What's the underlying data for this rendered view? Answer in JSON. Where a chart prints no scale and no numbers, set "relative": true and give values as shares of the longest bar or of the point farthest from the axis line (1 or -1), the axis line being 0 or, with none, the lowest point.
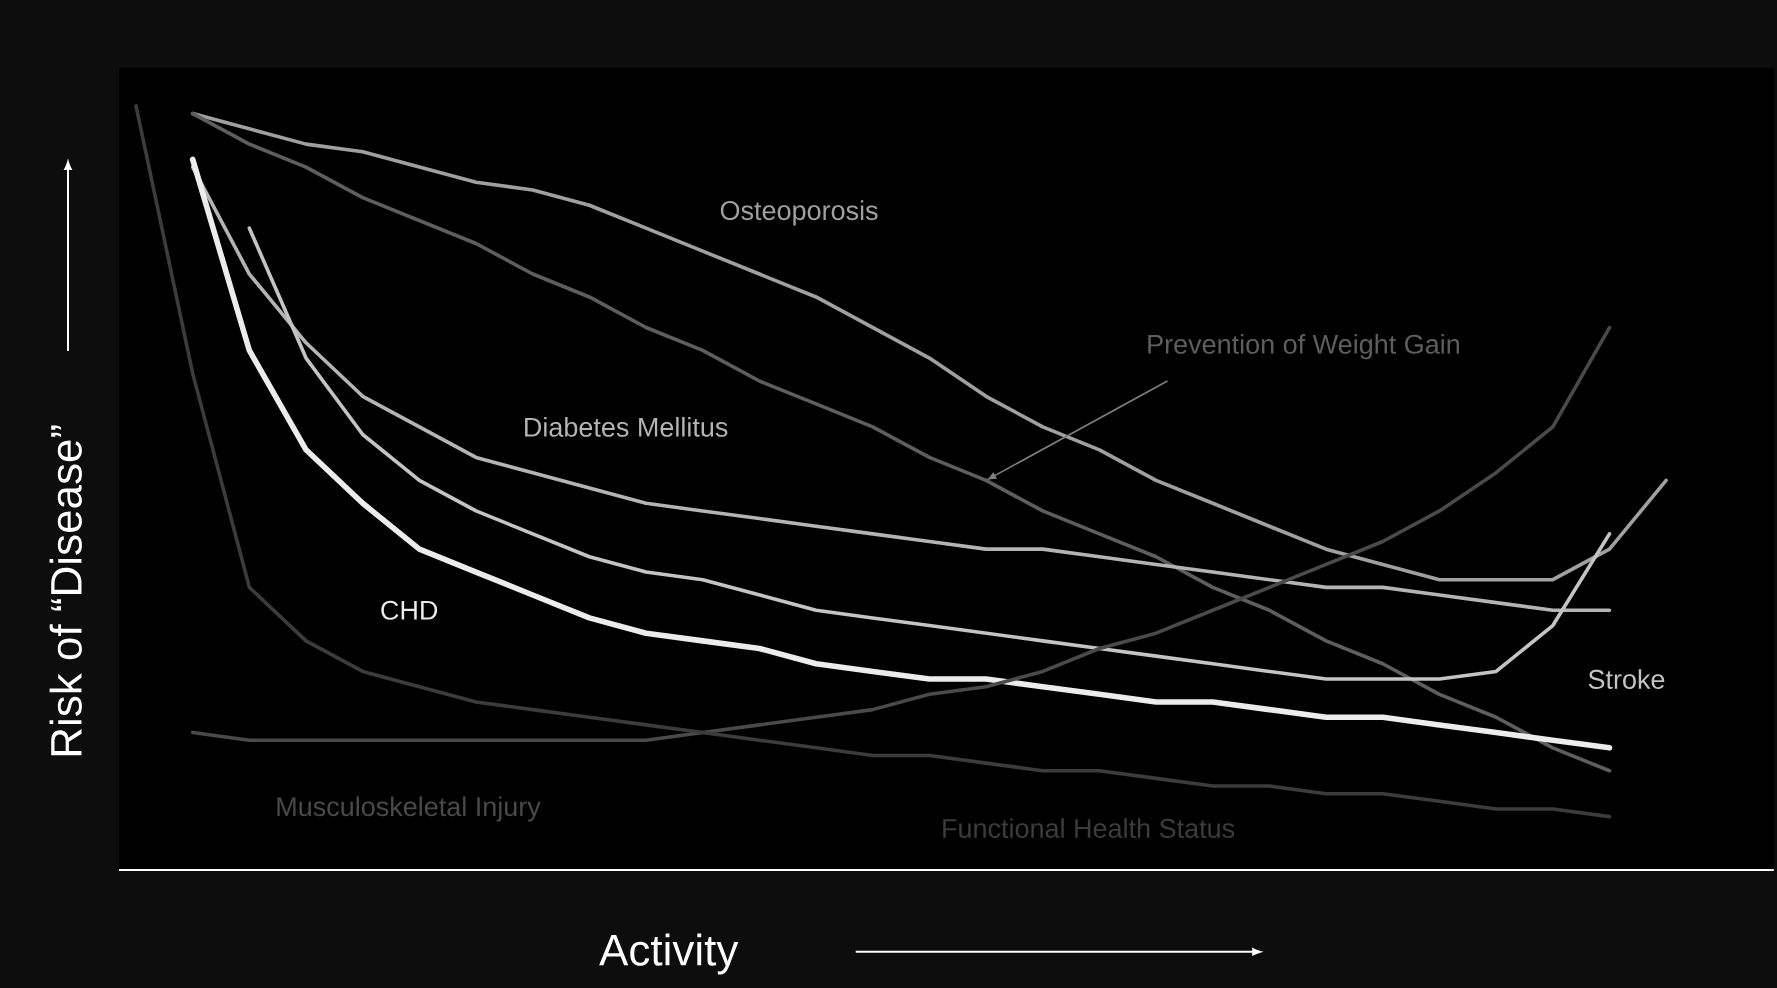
{
  "chart_data": {
    "type": "line",
    "relative": true,
    "xlabel": "Activity",
    "ylabel": "Risk of “Disease”",
    "categories": [
      null,
      null,
      null,
      null,
      null,
      null,
      null,
      null,
      null,
      null,
      null,
      null,
      null,
      null,
      null,
      null,
      null,
      null,
      null,
      null,
      null,
      null,
      null,
      null,
      null,
      null,
      null,
      null
    ],
    "series": [
      {
        "name": "Osteoporosis",
        "color": "#a0a0a0",
        "values": [
          null,
          0.99,
          0.97,
          0.95,
          0.94,
          0.92,
          0.9,
          0.89,
          0.87,
          0.84,
          0.81,
          0.78,
          0.75,
          0.71,
          0.67,
          0.62,
          0.58,
          0.55,
          0.51,
          0.48,
          0.45,
          0.42,
          0.4,
          0.38,
          0.38,
          0.38,
          0.42,
          0.51
        ]
      },
      {
        "name": "Prevention of Weight Gain",
        "color": "#5e5e5e",
        "values": [
          null,
          0.99,
          0.95,
          0.92,
          0.88,
          0.85,
          0.82,
          0.78,
          0.75,
          0.71,
          0.68,
          0.64,
          0.61,
          0.58,
          0.54,
          0.51,
          0.47,
          0.44,
          0.41,
          0.37,
          0.34,
          0.3,
          0.27,
          0.23,
          0.2,
          0.16,
          0.13,
          null
        ]
      },
      {
        "name": "Diabetes Mellitus",
        "color": "#b4b4b4",
        "values": [
          null,
          0.92,
          0.78,
          0.69,
          0.62,
          0.58,
          0.54,
          0.52,
          0.5,
          0.48,
          0.47,
          0.46,
          0.45,
          0.44,
          0.43,
          0.42,
          0.42,
          0.41,
          0.4,
          0.39,
          0.38,
          0.37,
          0.37,
          0.36,
          0.35,
          0.34,
          0.34,
          null
        ]
      },
      {
        "name": "CHD",
        "color": "#ececec",
        "values": [
          null,
          0.93,
          0.68,
          0.55,
          0.48,
          0.42,
          0.39,
          0.36,
          0.33,
          0.31,
          0.3,
          0.29,
          0.27,
          0.26,
          0.25,
          0.25,
          0.24,
          0.23,
          0.22,
          0.22,
          0.21,
          0.2,
          0.2,
          0.19,
          0.18,
          0.17,
          0.16,
          null
        ]
      },
      {
        "name": "Stroke",
        "color": "#c4c4c4",
        "values": [
          null,
          null,
          0.84,
          0.67,
          0.57,
          0.51,
          0.47,
          0.44,
          0.41,
          0.39,
          0.38,
          0.36,
          0.34,
          0.33,
          0.32,
          0.31,
          0.3,
          0.29,
          0.28,
          0.27,
          0.26,
          0.25,
          0.25,
          0.25,
          0.26,
          0.32,
          0.44,
          null
        ]
      },
      {
        "name": "Musculoskeletal Injury",
        "color": "#4a4a4a",
        "values": [
          null,
          0.18,
          0.17,
          0.17,
          0.17,
          0.17,
          0.17,
          0.17,
          0.17,
          0.17,
          0.18,
          0.19,
          0.2,
          0.21,
          0.23,
          0.24,
          0.26,
          0.29,
          0.31,
          0.34,
          0.37,
          0.4,
          0.43,
          0.47,
          0.52,
          0.58,
          0.71,
          null
        ]
      },
      {
        "name": "Functional Health Status",
        "color": "#3c3c3c",
        "values": [
          1.0,
          0.65,
          0.37,
          0.3,
          0.26,
          0.24,
          0.22,
          0.21,
          0.2,
          0.19,
          0.18,
          0.17,
          0.16,
          0.15,
          0.15,
          0.14,
          0.13,
          0.13,
          0.12,
          0.11,
          0.11,
          0.1,
          0.1,
          0.09,
          0.08,
          0.08,
          0.07,
          null
        ]
      }
    ]
  }
}
